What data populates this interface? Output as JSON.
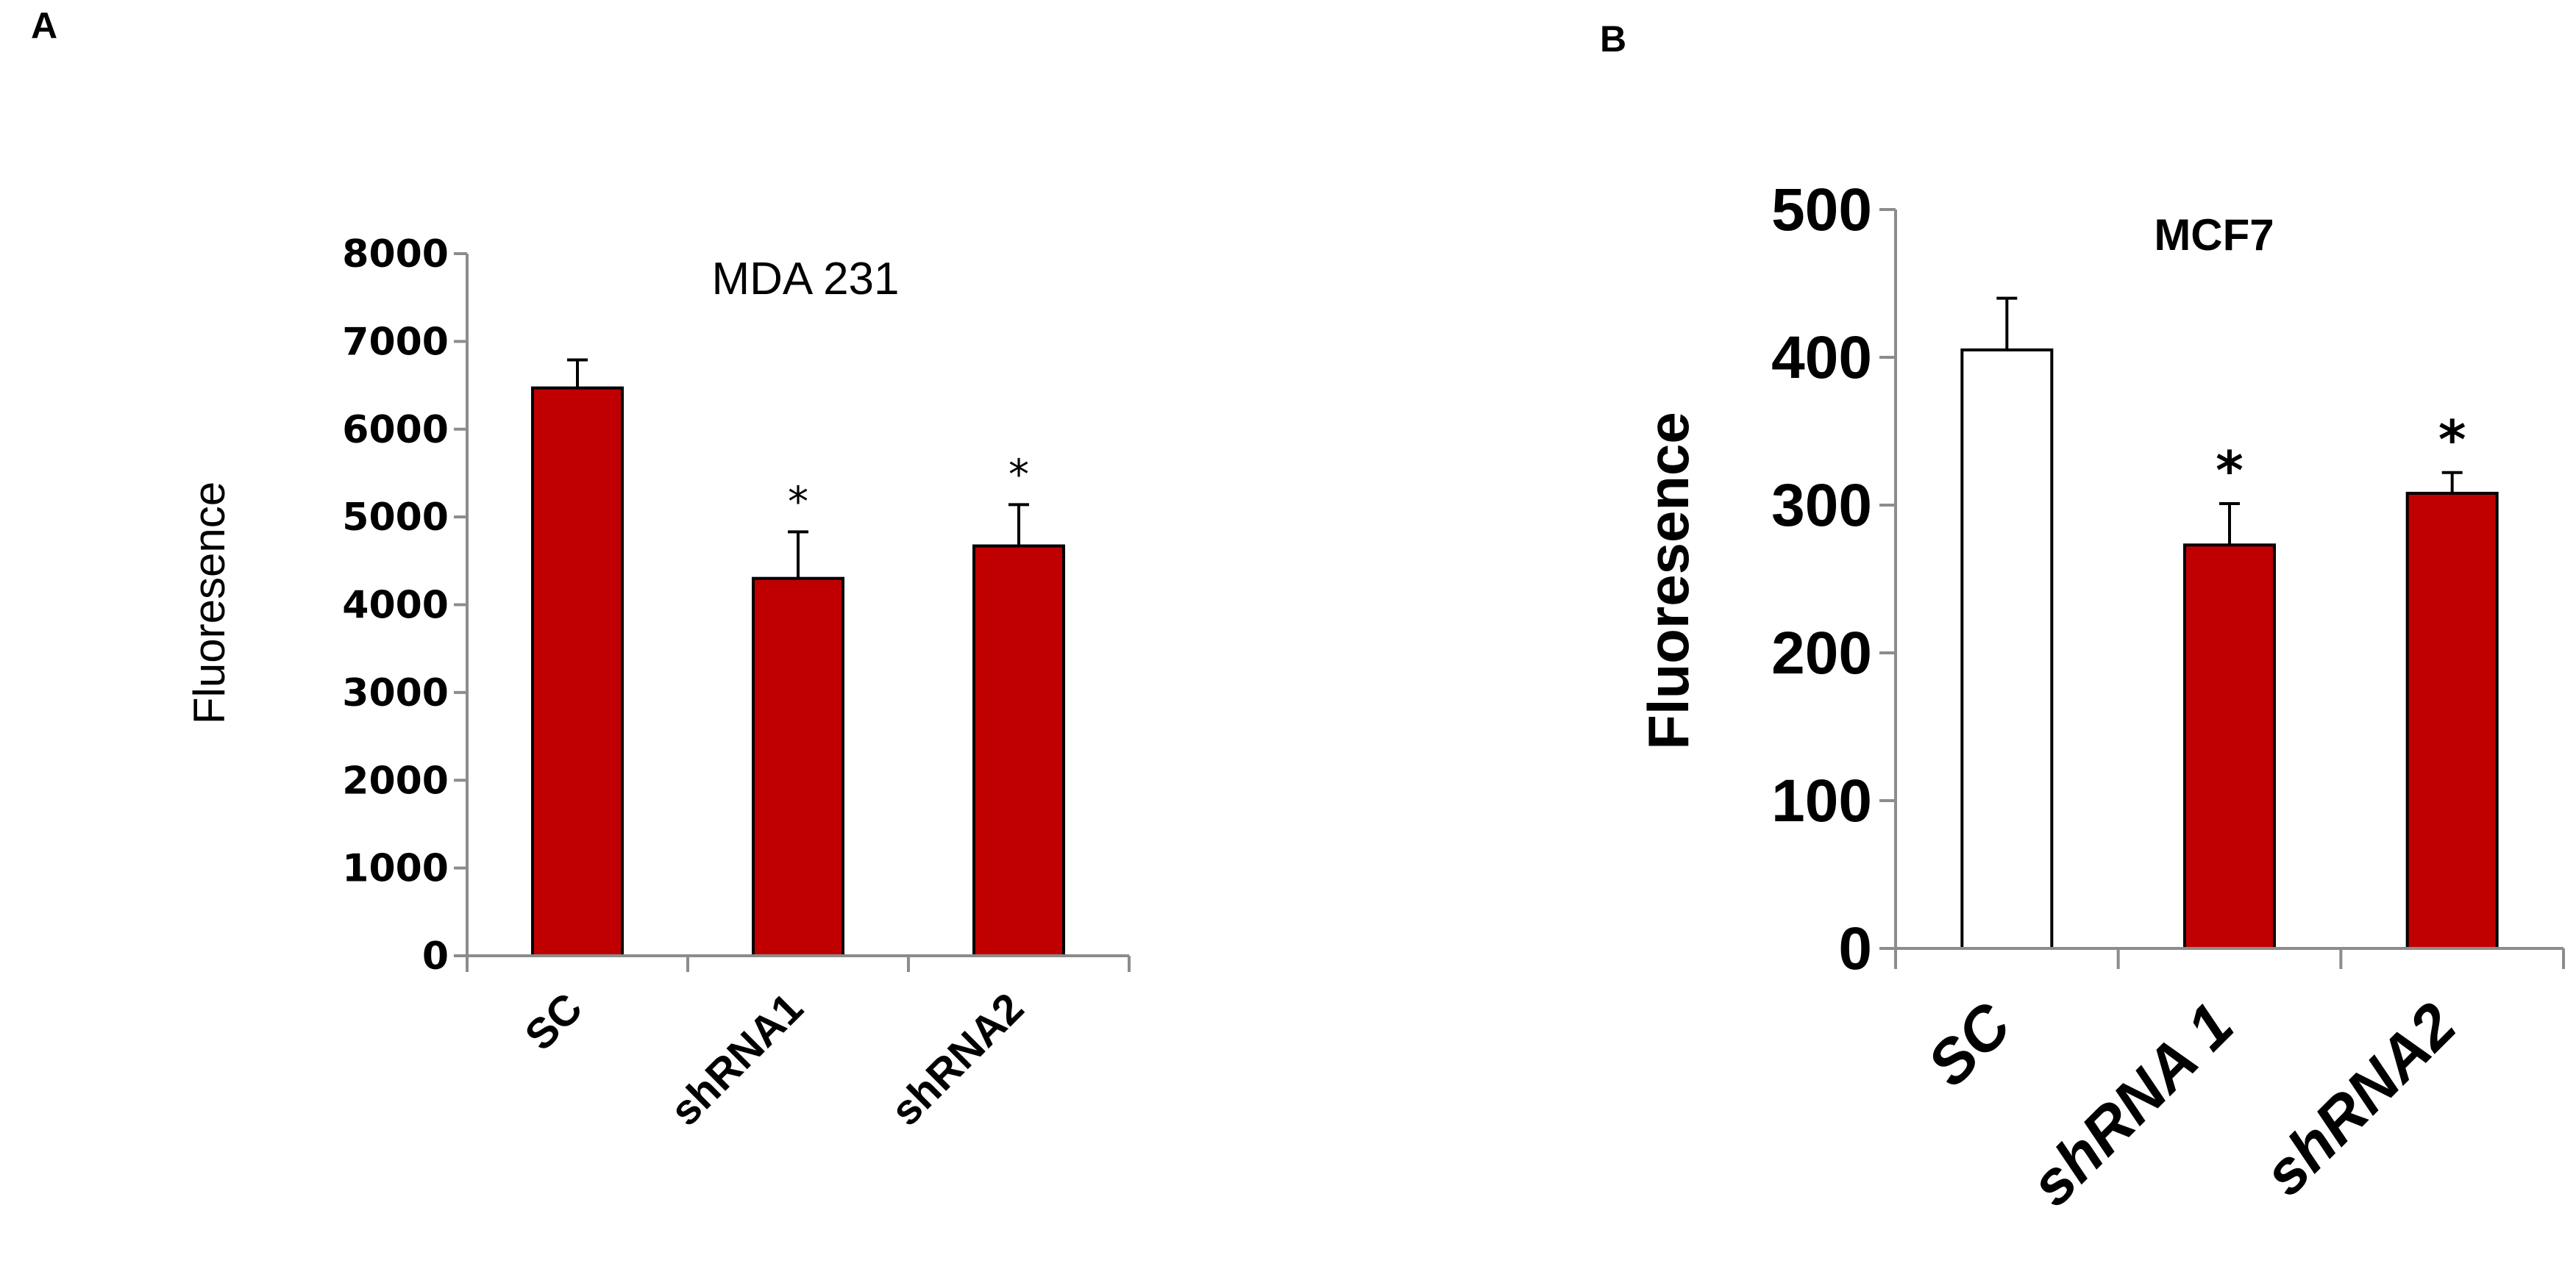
{
  "panels": [
    {
      "letter": "A",
      "chart_data": {
        "type": "bar",
        "title": "MDA 231",
        "ylabel": "Fluoresence",
        "xlabel": "",
        "categories": [
          "SC",
          "shRNA1",
          "shRNA2"
        ],
        "values": [
          6470,
          4300,
          4670
        ],
        "errors": [
          320,
          530,
          470
        ],
        "significance": [
          "",
          "*",
          "*"
        ],
        "bar_colors": [
          "#C00000",
          "#C00000",
          "#C00000"
        ],
        "ylim": [
          0,
          8000
        ],
        "yticks": [
          "0",
          "1000",
          "2000",
          "3000",
          "4000",
          "5000",
          "6000",
          "7000",
          "8000"
        ],
        "grid": false
      }
    },
    {
      "letter": "B",
      "chart_data": {
        "type": "bar",
        "title": "MCF7",
        "ylabel": "Fluoresence",
        "xlabel": "",
        "categories": [
          "SC",
          "shRNA 1",
          "shRNA2"
        ],
        "values": [
          405,
          273,
          308
        ],
        "errors": [
          35,
          28,
          14
        ],
        "significance": [
          "",
          "*",
          "*"
        ],
        "bar_colors": [
          "#FFFFFF",
          "#C00000",
          "#C00000"
        ],
        "ylim": [
          0,
          500
        ],
        "yticks": [
          "0",
          "100",
          "200",
          "300",
          "400",
          "500"
        ],
        "grid": false
      }
    }
  ]
}
